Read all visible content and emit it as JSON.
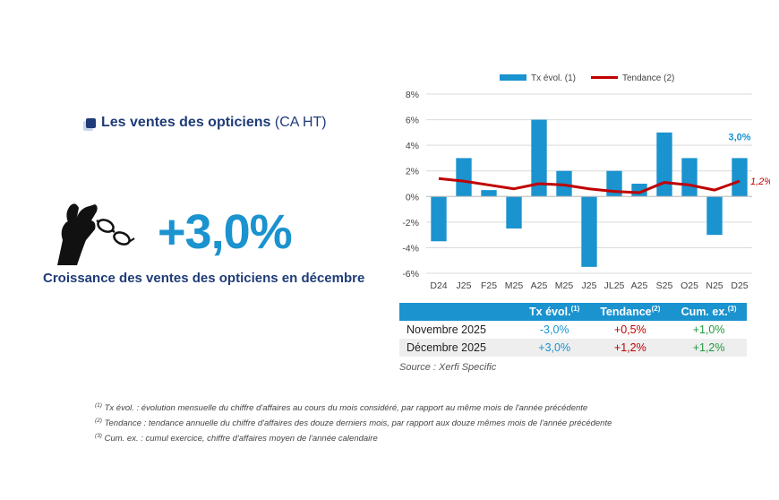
{
  "title": {
    "main": "Les ventes des opticiens",
    "sub": "(CA HT)"
  },
  "headline": {
    "value": "+3,0%",
    "caption": "Croissance des ventes des opticiens en décembre"
  },
  "icon": "hand-holding-glasses-icon",
  "colors": {
    "bar": "#1a93cf",
    "trend": "#c00000",
    "navy": "#1f3c78",
    "green": "#1e9a3e"
  },
  "chart_data": {
    "type": "bar",
    "categories": [
      "D24",
      "J25",
      "F25",
      "M25",
      "A25",
      "M25",
      "J25",
      "JL25",
      "A25",
      "S25",
      "O25",
      "N25",
      "D25"
    ],
    "series": [
      {
        "name": "Tx évol. (1)",
        "type": "bar",
        "values": [
          -3.5,
          3.0,
          0.5,
          -2.5,
          6.0,
          2.0,
          -5.5,
          2.0,
          1.0,
          5.0,
          3.0,
          -3.0,
          3.0
        ]
      },
      {
        "name": "Tendance (2)",
        "type": "line",
        "values": [
          1.4,
          1.2,
          0.9,
          0.6,
          1.0,
          0.9,
          0.6,
          0.4,
          0.3,
          1.1,
          0.9,
          0.5,
          1.2
        ]
      }
    ],
    "ylim": [
      -6,
      8
    ],
    "yticks": [
      "-6%",
      "-4%",
      "-2%",
      "0%",
      "2%",
      "4%",
      "6%",
      "8%"
    ],
    "ytick_values": [
      -6,
      -4,
      -2,
      0,
      2,
      4,
      6,
      8
    ],
    "annotations": {
      "last_bar": "3,0%",
      "last_trend": "1,2%"
    },
    "legend": {
      "position": "top",
      "items": [
        "Tx évol. (1)",
        "Tendance (2)"
      ]
    }
  },
  "table": {
    "headers": [
      "",
      "Tx évol.",
      "Tendance",
      "Cum. ex."
    ],
    "header_sups": [
      "",
      "(1)",
      "(2)",
      "(3)"
    ],
    "rows": [
      {
        "label": "Novembre 2025",
        "tx": "-3,0%",
        "tend": "+0,5%",
        "cum": "+1,0%"
      },
      {
        "label": "Décembre 2025",
        "tx": "+3,0%",
        "tend": "+1,2%",
        "cum": "+1,2%"
      }
    ]
  },
  "source": "Source : Xerfi Specific",
  "footnotes": [
    {
      "sup": "(1)",
      "text": "Tx évol. : évolution mensuelle du chiffre d'affaires au cours du mois considéré, par rapport au même mois de l'année précédente"
    },
    {
      "sup": "(2)",
      "text": "Tendance : tendance annuelle du chiffre d'affaires des douze derniers mois, par rapport aux douze mêmes mois de l'année précédente"
    },
    {
      "sup": "(3)",
      "text": "Cum. ex. : cumul exercice, chiffre d'affaires moyen de l'année calendaire"
    }
  ]
}
